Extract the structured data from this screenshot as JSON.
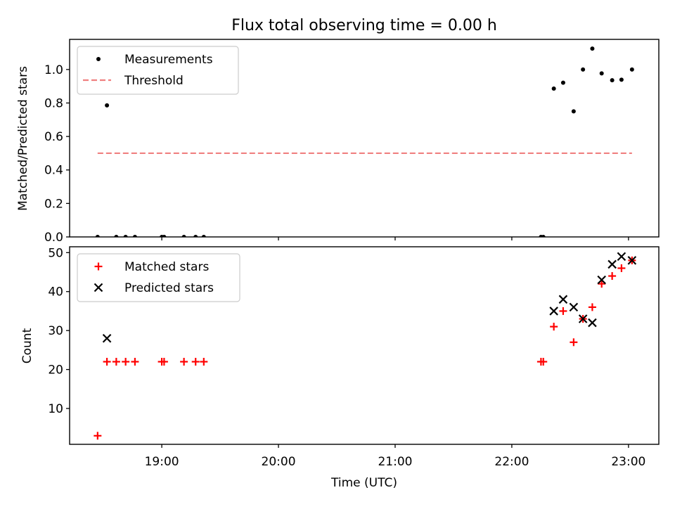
{
  "chart_data": {
    "type": "scatter",
    "title": "Flux total observing time = 0.00 h",
    "xlabel": "Time (UTC)",
    "x_tick_labels": [
      "19:00",
      "20:00",
      "21:00",
      "22:00",
      "23:00"
    ],
    "x_tick_hours": [
      19,
      20,
      21,
      22,
      23
    ],
    "x_range_hours": [
      18.21,
      23.26
    ],
    "panels": [
      {
        "id": "ratio",
        "ylabel": "Matched/Predicted stars",
        "ylim": [
          0.0,
          1.18
        ],
        "y_ticks": [
          0.0,
          0.2,
          0.4,
          0.6,
          0.8,
          1.0
        ],
        "y_tick_labels": [
          "0.0",
          "0.2",
          "0.4",
          "0.6",
          "0.8",
          "1.0"
        ],
        "legend": {
          "position": "upper-left",
          "entries": [
            {
              "label": "Measurements",
              "marker": "dot",
              "color": "#000000"
            },
            {
              "label": "Threshold",
              "marker": "dashed-line",
              "color": "#f08080"
            }
          ]
        },
        "series": [
          {
            "name": "Measurements",
            "marker": "dot",
            "color": "#000000",
            "x_hours": [
              18.45,
              18.53,
              18.61,
              18.69,
              18.77,
              19.0,
              19.02,
              19.19,
              19.29,
              19.36,
              22.25,
              22.27,
              22.36,
              22.44,
              22.53,
              22.61,
              22.69,
              22.77,
              22.86,
              22.94,
              23.03
            ],
            "y": [
              0.0,
              0.786,
              0.0,
              0.0,
              0.0,
              0.0,
              0.0,
              0.0,
              0.0,
              0.0,
              0.0,
              0.0,
              0.886,
              0.921,
              0.75,
              1.0,
              1.125,
              0.977,
              0.936,
              0.939,
              1.0
            ]
          },
          {
            "name": "Threshold",
            "marker": "dashed-line",
            "color": "#f08080",
            "x_hours": [
              18.45,
              23.03
            ],
            "y": [
              0.5,
              0.5
            ]
          }
        ]
      },
      {
        "id": "count",
        "ylabel": "Count",
        "ylim": [
          0.8,
          51.5
        ],
        "y_ticks": [
          10,
          20,
          30,
          40,
          50
        ],
        "y_tick_labels": [
          "10",
          "20",
          "30",
          "40",
          "50"
        ],
        "legend": {
          "position": "upper-left",
          "entries": [
            {
              "label": "Matched stars",
              "marker": "plus",
              "color": "#ff0000"
            },
            {
              "label": "Predicted stars",
              "marker": "x",
              "color": "#000000"
            }
          ]
        },
        "series": [
          {
            "name": "Matched stars",
            "marker": "plus",
            "color": "#ff0000",
            "x_hours": [
              18.45,
              18.53,
              18.61,
              18.69,
              18.77,
              19.0,
              19.02,
              19.19,
              19.29,
              19.36,
              22.25,
              22.27,
              22.36,
              22.44,
              22.53,
              22.61,
              22.69,
              22.77,
              22.86,
              22.94,
              23.03
            ],
            "y": [
              3,
              22,
              22,
              22,
              22,
              22,
              22,
              22,
              22,
              22,
              22,
              22,
              31,
              35,
              27,
              33,
              36,
              42,
              44,
              46,
              48
            ]
          },
          {
            "name": "Predicted stars",
            "marker": "x",
            "color": "#000000",
            "x_hours": [
              18.53,
              22.36,
              22.44,
              22.53,
              22.61,
              22.69,
              22.77,
              22.86,
              22.94,
              23.03
            ],
            "y": [
              28,
              35,
              38,
              36,
              33,
              32,
              43,
              47,
              49,
              48
            ]
          }
        ]
      }
    ]
  }
}
